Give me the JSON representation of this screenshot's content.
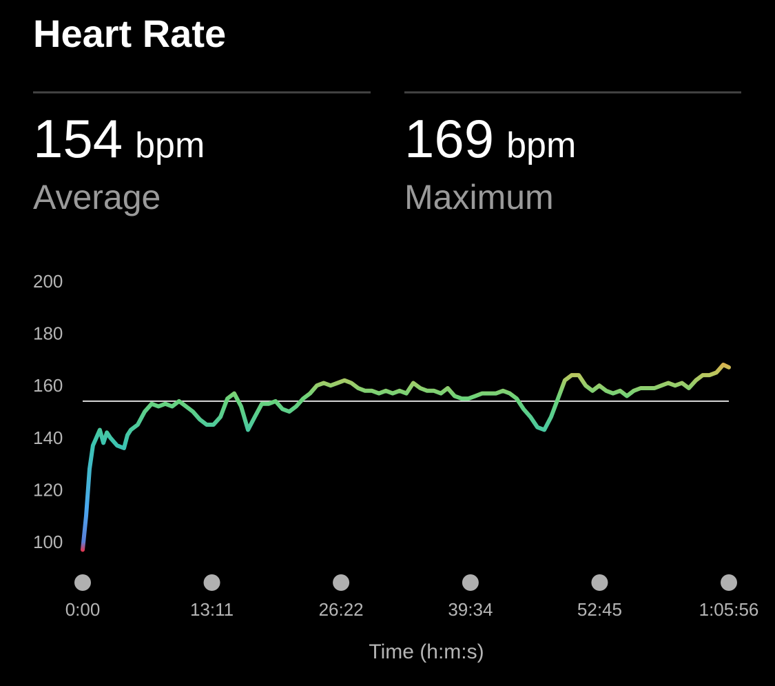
{
  "header": {
    "title": "Heart Rate"
  },
  "stats": [
    {
      "value": 154,
      "unit": "bpm",
      "label": "Average"
    },
    {
      "value": 169,
      "unit": "bpm",
      "label": "Maximum"
    }
  ],
  "chart_data": {
    "type": "line",
    "x_label": "Time (h:m:s)",
    "x": [
      0,
      21,
      42,
      63,
      84,
      105,
      127,
      148,
      169,
      211,
      253,
      274,
      295,
      337,
      380,
      422,
      464,
      506,
      548,
      590,
      633,
      675,
      717,
      759,
      801,
      844,
      886,
      928,
      970,
      1012,
      1054,
      1097,
      1139,
      1181,
      1223,
      1265,
      1307,
      1350,
      1392,
      1434,
      1476,
      1518,
      1560,
      1603,
      1645,
      1687,
      1729,
      1771,
      1814,
      1856,
      1898,
      1940,
      1982,
      2024,
      2067,
      2109,
      2151,
      2193,
      2235,
      2277,
      2320,
      2362,
      2404,
      2446,
      2488,
      2531,
      2573,
      2615,
      2657,
      2699,
      2741,
      2784,
      2826,
      2868,
      2910,
      2952,
      2994,
      3037,
      3079,
      3121,
      3163,
      3205,
      3247,
      3290,
      3332,
      3374,
      3416,
      3458,
      3501,
      3543,
      3585,
      3627,
      3669,
      3711,
      3754,
      3796,
      3838,
      3880,
      3922,
      3956
    ],
    "values": [
      97,
      110,
      128,
      137,
      140,
      143,
      138,
      142,
      140,
      137,
      136,
      141,
      143,
      145,
      150,
      153,
      152,
      153,
      152,
      154,
      152,
      150,
      147,
      145,
      145,
      148,
      155,
      157,
      152,
      143,
      148,
      153,
      153,
      154,
      151,
      150,
      152,
      155,
      157,
      160,
      161,
      160,
      161,
      162,
      161,
      159,
      158,
      158,
      157,
      158,
      157,
      158,
      157,
      161,
      159,
      158,
      158,
      157,
      159,
      156,
      155,
      155,
      156,
      157,
      157,
      157,
      158,
      157,
      155,
      151,
      148,
      144,
      143,
      148,
      155,
      162,
      164,
      164,
      160,
      158,
      160,
      158,
      157,
      158,
      156,
      158,
      159,
      159,
      159,
      160,
      161,
      160,
      161,
      159,
      162,
      164,
      164,
      165,
      168,
      167
    ],
    "xlim": [
      0,
      3956
    ],
    "xticks": [
      {
        "value": 0,
        "label": "0:00"
      },
      {
        "value": 791,
        "label": "13:11"
      },
      {
        "value": 1582,
        "label": "26:22"
      },
      {
        "value": 2374,
        "label": "39:34"
      },
      {
        "value": 3165,
        "label": "52:45"
      },
      {
        "value": 3956,
        "label": "1:05:56"
      }
    ],
    "ylim": [
      95,
      200
    ],
    "yticks": [
      100,
      120,
      140,
      160,
      180,
      200
    ],
    "grid": false
  }
}
